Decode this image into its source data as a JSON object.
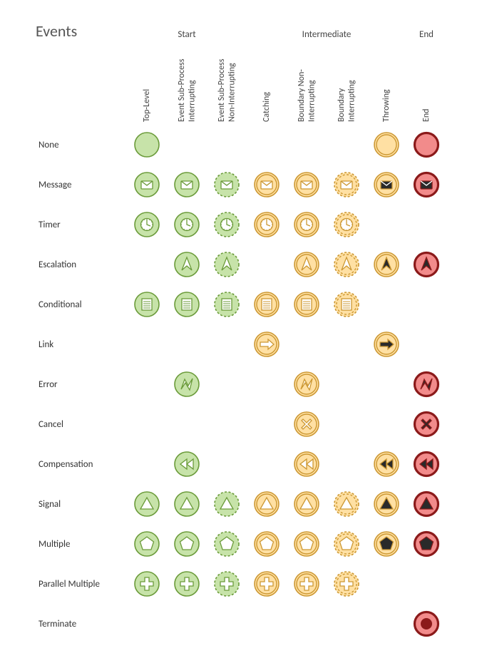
{
  "title": "Events",
  "colors": {
    "start_fill": "#c7e3a9",
    "start_stroke": "#6b9b3a",
    "inter_fill": "#ffe0a3",
    "inter_stroke": "#cc9833",
    "end_fill": "#f28b8b",
    "end_stroke": "#8b1a1a",
    "throw_fill": "#2a2a2a",
    "symbol_stroke": "#4a4a4a",
    "symbol_fill": "#ffffff"
  },
  "groups": [
    {
      "label": "Start",
      "span": [
        1,
        3
      ]
    },
    {
      "label": "Intermediate",
      "span": [
        4,
        7
      ]
    },
    {
      "label": "End",
      "span": [
        8,
        8
      ]
    }
  ],
  "columns": [
    {
      "id": "top",
      "label": "Top-Level",
      "ring": "single",
      "dashed": false,
      "palette": "start"
    },
    {
      "id": "esp_int",
      "label": "Event Sub-Process Interrupting",
      "ring": "single",
      "dashed": false,
      "palette": "start"
    },
    {
      "id": "esp_nonint",
      "label": "Event Sub-Process Non-Interrupting",
      "ring": "single",
      "dashed": true,
      "palette": "start"
    },
    {
      "id": "catch",
      "label": "Catching",
      "ring": "double",
      "dashed": false,
      "palette": "inter"
    },
    {
      "id": "bnd_nonint",
      "label": "Boundary Non-Interrupting",
      "ring": "double",
      "dashed": false,
      "palette": "inter"
    },
    {
      "id": "bnd_int",
      "label": "Boundary Interrupting",
      "ring": "double",
      "dashed": true,
      "palette": "inter"
    },
    {
      "id": "throw",
      "label": "Throwing",
      "ring": "double",
      "dashed": false,
      "palette": "inter",
      "throw": true
    },
    {
      "id": "end",
      "label": "End",
      "ring": "thick",
      "dashed": false,
      "palette": "end",
      "throw": true
    }
  ],
  "rows": [
    {
      "label": "None",
      "symbol": "none",
      "cells": [
        "top",
        "throw",
        "end"
      ]
    },
    {
      "label": "Message",
      "symbol": "message",
      "cells": [
        "top",
        "esp_int",
        "esp_nonint",
        "catch",
        "bnd_nonint",
        "bnd_int",
        "throw",
        "end"
      ]
    },
    {
      "label": "Timer",
      "symbol": "timer",
      "cells": [
        "top",
        "esp_int",
        "esp_nonint",
        "catch",
        "bnd_nonint",
        "bnd_int"
      ]
    },
    {
      "label": "Escalation",
      "symbol": "escalation",
      "cells": [
        "esp_int",
        "esp_nonint",
        "bnd_nonint",
        "bnd_int",
        "throw",
        "end"
      ]
    },
    {
      "label": "Conditional",
      "symbol": "conditional",
      "cells": [
        "top",
        "esp_int",
        "esp_nonint",
        "catch",
        "bnd_nonint",
        "bnd_int"
      ]
    },
    {
      "label": "Link",
      "symbol": "link",
      "cells": [
        "catch",
        "throw"
      ]
    },
    {
      "label": "Error",
      "symbol": "error",
      "cells": [
        "esp_int",
        "bnd_nonint",
        "end"
      ]
    },
    {
      "label": "Cancel",
      "symbol": "cancel",
      "cells": [
        "bnd_nonint",
        "end"
      ]
    },
    {
      "label": "Compensation",
      "symbol": "compensation",
      "cells": [
        "esp_int",
        "bnd_nonint",
        "throw",
        "end"
      ]
    },
    {
      "label": "Signal",
      "symbol": "signal",
      "cells": [
        "top",
        "esp_int",
        "esp_nonint",
        "catch",
        "bnd_nonint",
        "bnd_int",
        "throw",
        "end"
      ]
    },
    {
      "label": "Multiple",
      "symbol": "multiple",
      "cells": [
        "top",
        "esp_int",
        "esp_nonint",
        "catch",
        "bnd_nonint",
        "bnd_int",
        "throw",
        "end"
      ]
    },
    {
      "label": "Parallel Multiple",
      "symbol": "parallel",
      "cells": [
        "top",
        "esp_int",
        "esp_nonint",
        "catch",
        "bnd_nonint",
        "bnd_int"
      ]
    },
    {
      "label": "Terminate",
      "symbol": "terminate",
      "cells": [
        "end"
      ]
    }
  ]
}
